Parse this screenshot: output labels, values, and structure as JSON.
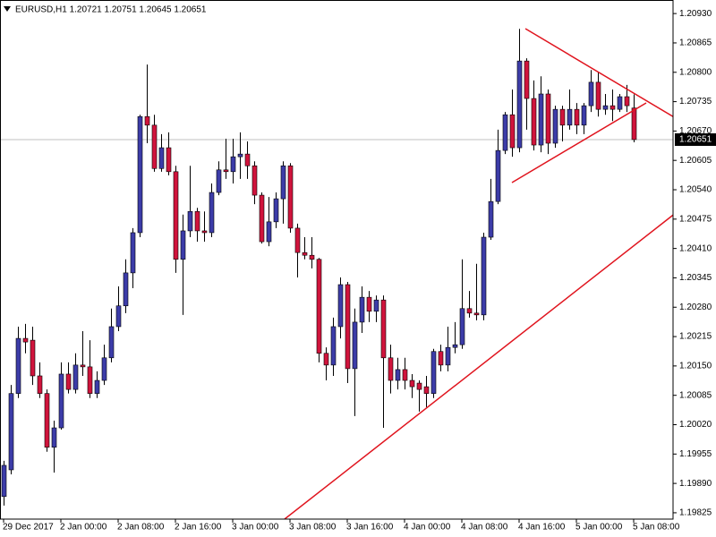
{
  "chart_data": {
    "type": "candlestick",
    "title": "EURUSD,H1  1.20721 1.20751 1.20645 1.20651",
    "categories": [
      "29 Dec 2017",
      null,
      null,
      null,
      null,
      null,
      null,
      null,
      "2 Jan 00:00",
      null,
      null,
      null,
      null,
      null,
      null,
      null,
      "2 Jan 08:00",
      null,
      null,
      null,
      null,
      null,
      null,
      null,
      "2 Jan 16:00",
      null,
      null,
      null,
      null,
      null,
      null,
      null,
      "3 Jan 00:00",
      null,
      null,
      null,
      null,
      null,
      null,
      null,
      "3 Jan 08:00",
      null,
      null,
      null,
      null,
      null,
      null,
      null,
      "3 Jan 16:00",
      null,
      null,
      null,
      null,
      null,
      null,
      null,
      "4 Jan 00:00",
      null,
      null,
      null,
      null,
      null,
      null,
      null,
      "4 Jan 08:00",
      null,
      null,
      null,
      null,
      null,
      null,
      null,
      "4 Jan 16:00",
      null,
      null,
      null,
      null,
      null,
      null,
      null,
      "5 Jan 00:00",
      null,
      null,
      null,
      null,
      null,
      null,
      null,
      "5 Jan 08:00"
    ],
    "open": [
      1.19861,
      1.1992,
      1.20089,
      1.20211,
      1.20207,
      1.20128,
      1.20089,
      1.1997,
      1.20013,
      1.20132,
      1.20098,
      1.20152,
      1.20148,
      1.20089,
      1.20118,
      1.20168,
      1.20237,
      1.20283,
      1.20356,
      1.20445,
      1.20702,
      1.20683,
      1.20587,
      1.20633,
      1.2058,
      1.20386,
      1.20449,
      1.20492,
      1.20449,
      1.20445,
      1.20534,
      1.20584,
      1.2058,
      1.20613,
      1.20619,
      1.20593,
      1.20528,
      1.20425,
      1.20469,
      1.2052,
      1.20593,
      1.20455,
      1.20401,
      1.20395,
      1.20386,
      1.20178,
      1.20152,
      1.20237,
      1.2033,
      1.20144,
      1.20247,
      1.20302,
      1.20271,
      1.20296,
      1.20168,
      1.20118,
      1.20142,
      1.20118,
      1.20112,
      1.20104,
      1.20089,
      1.20182,
      1.20152,
      1.20191,
      1.20197,
      1.20277,
      1.20267,
      1.20263,
      1.20435,
      1.20514,
      1.20627,
      1.20706,
      1.20633,
      1.20825,
      1.20742,
      1.20639,
      1.20752,
      1.20643,
      1.20718,
      1.20683,
      1.20718,
      1.20683,
      1.20726,
      1.20778,
      1.20718,
      1.20726,
      1.20718,
      1.20746,
      1.20721
    ],
    "high": [
      1.1994,
      1.20108,
      1.20237,
      1.20243,
      1.20237,
      1.20158,
      1.20098,
      1.20029,
      1.20158,
      1.20158,
      1.20178,
      1.20227,
      1.20207,
      1.20138,
      1.20197,
      1.20277,
      1.20326,
      1.20386,
      1.20455,
      1.20706,
      1.20817,
      1.20706,
      1.20663,
      1.20667,
      1.20593,
      1.20485,
      1.20593,
      1.205,
      1.20492,
      1.20554,
      1.20603,
      1.20653,
      1.20653,
      1.20667,
      1.20647,
      1.20603,
      1.20534,
      1.20524,
      1.20534,
      1.20603,
      1.20599,
      1.20465,
      1.20435,
      1.20435,
      1.20389,
      1.20191,
      1.20257,
      1.20346,
      1.20336,
      1.20277,
      1.20326,
      1.20316,
      1.20306,
      1.20306,
      1.20197,
      1.20168,
      1.20168,
      1.20132,
      1.20118,
      1.20128,
      1.20188,
      1.20197,
      1.20237,
      1.20247,
      1.20386,
      1.20316,
      1.20376,
      1.20445,
      1.20564,
      1.20673,
      1.20712,
      1.20762,
      1.20896,
      1.20831,
      1.20782,
      1.20791,
      1.20762,
      1.20726,
      1.20726,
      1.20762,
      1.20732,
      1.20732,
      1.20805,
      1.20801,
      1.20752,
      1.20762,
      1.20752,
      1.20772,
      1.20751
    ],
    "low": [
      1.19841,
      1.1991,
      1.20079,
      1.20178,
      1.20108,
      1.20079,
      1.1996,
      1.19914,
      1.20009,
      1.20089,
      1.20089,
      1.20128,
      1.20079,
      1.20079,
      1.20108,
      1.20158,
      1.20227,
      1.20267,
      1.20322,
      1.20435,
      1.20643,
      1.2058,
      1.2058,
      1.20572,
      1.20356,
      1.20263,
      1.20435,
      1.20425,
      1.20425,
      1.20435,
      1.20528,
      1.20564,
      1.20554,
      1.20564,
      1.20564,
      1.20508,
      1.20421,
      1.20415,
      1.20455,
      1.20465,
      1.20445,
      1.20346,
      1.20386,
      1.20366,
      1.20158,
      1.20118,
      1.20128,
      1.20211,
      1.20112,
      1.20039,
      1.20223,
      1.20247,
      1.20247,
      1.20013,
      1.20089,
      1.20098,
      1.20098,
      1.20079,
      1.20049,
      1.20059,
      1.20079,
      1.20138,
      1.20138,
      1.20178,
      1.20188,
      1.20257,
      1.20251,
      1.20251,
      1.20429,
      1.20508,
      1.20619,
      1.20613,
      1.20623,
      1.20673,
      1.20627,
      1.20623,
      1.20619,
      1.20633,
      1.20647,
      1.20673,
      1.20663,
      1.20663,
      1.20712,
      1.20702,
      1.20706,
      1.20692,
      1.20712,
      1.20712,
      1.20645
    ],
    "close": [
      1.1993,
      1.20089,
      1.20211,
      1.20203,
      1.20128,
      1.20089,
      1.1997,
      1.20013,
      1.20132,
      1.20098,
      1.20152,
      1.20148,
      1.20089,
      1.20118,
      1.20168,
      1.20237,
      1.20283,
      1.20356,
      1.20445,
      1.20702,
      1.20683,
      1.20587,
      1.20633,
      1.2058,
      1.20386,
      1.20449,
      1.20492,
      1.20449,
      1.20445,
      1.20534,
      1.20584,
      1.2058,
      1.20613,
      1.20619,
      1.20593,
      1.20528,
      1.20425,
      1.20469,
      1.2052,
      1.20593,
      1.20455,
      1.20401,
      1.20395,
      1.20386,
      1.20178,
      1.20152,
      1.20237,
      1.2033,
      1.20144,
      1.20247,
      1.20302,
      1.20271,
      1.20296,
      1.20168,
      1.20118,
      1.20142,
      1.20118,
      1.20104,
      1.20098,
      1.20089,
      1.20182,
      1.20152,
      1.20191,
      1.20197,
      1.20277,
      1.20267,
      1.20263,
      1.20435,
      1.20514,
      1.20627,
      1.20706,
      1.20633,
      1.20825,
      1.20742,
      1.20639,
      1.20752,
      1.20643,
      1.20718,
      1.20683,
      1.20718,
      1.20683,
      1.20726,
      1.20778,
      1.20718,
      1.20726,
      1.20718,
      1.20746,
      1.20726,
      1.20651
    ],
    "up_color": "#3c3ca8",
    "down_color": "#d0143c",
    "ylim": [
      1.19811,
      1.2096
    ],
    "yticks": [
      {
        "value": 1.2093,
        "label": "1.20930"
      },
      {
        "value": 1.20865,
        "label": "1.20865"
      },
      {
        "value": 1.208,
        "label": "1.20800"
      },
      {
        "value": 1.20735,
        "label": "1.20735"
      },
      {
        "value": 1.2067,
        "label": "1.20670"
      },
      {
        "value": 1.20605,
        "label": "1.20605"
      },
      {
        "value": 1.2054,
        "label": "1.20540"
      },
      {
        "value": 1.20475,
        "label": "1.20475"
      },
      {
        "value": 1.2041,
        "label": "1.20410"
      },
      {
        "value": 1.20345,
        "label": "1.20345"
      },
      {
        "value": 1.2028,
        "label": "1.20280"
      },
      {
        "value": 1.20215,
        "label": "1.20215"
      },
      {
        "value": 1.2015,
        "label": "1.20150"
      },
      {
        "value": 1.20085,
        "label": "1.20085"
      },
      {
        "value": 1.2002,
        "label": "1.20020"
      },
      {
        "value": 1.19955,
        "label": "1.19955"
      },
      {
        "value": 1.1989,
        "label": "1.19890"
      },
      {
        "value": 1.19825,
        "label": "1.19825"
      }
    ],
    "last_price": 1.20651
  }
}
